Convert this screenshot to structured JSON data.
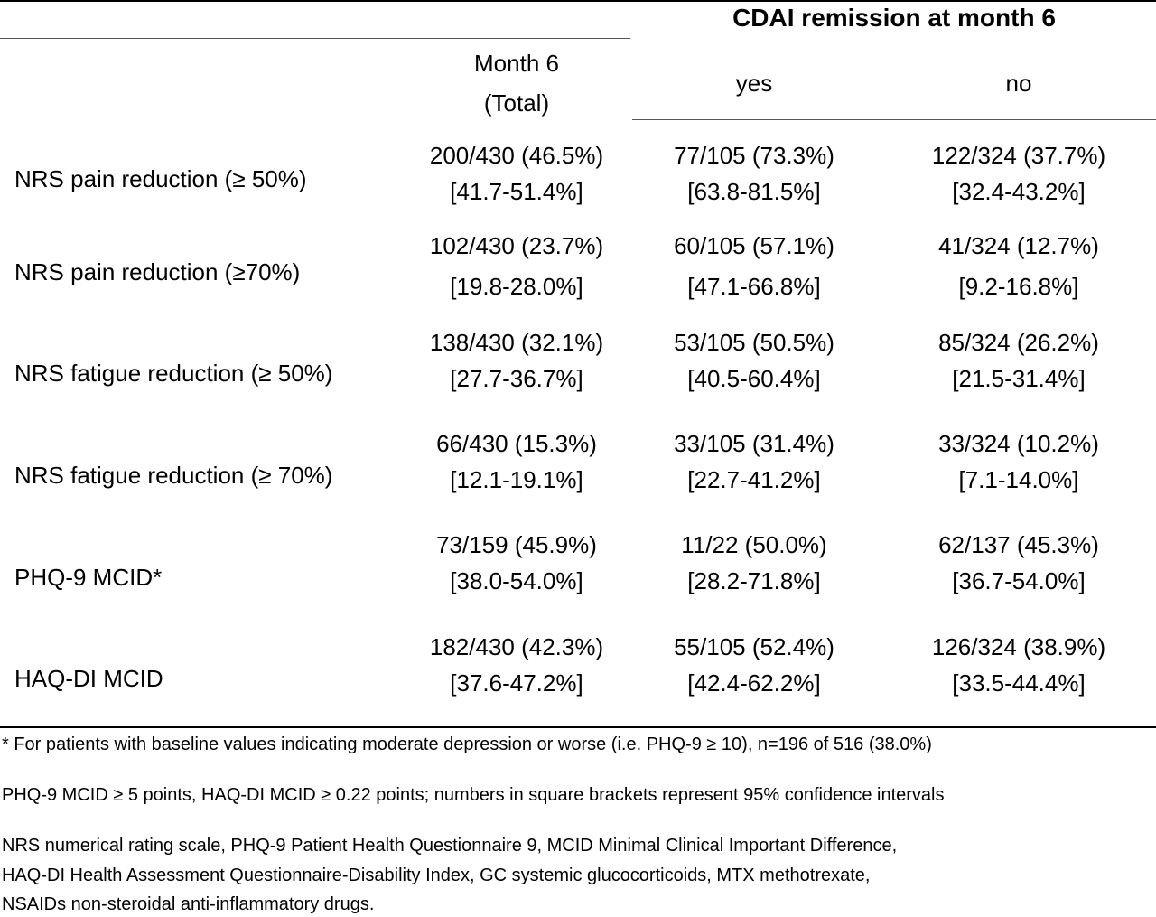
{
  "header": {
    "group_title": "CDAI remission at month 6",
    "col_total_line1": "Month 6",
    "col_total_line2": "(Total)",
    "col_yes": "yes",
    "col_no": "no"
  },
  "rows": [
    {
      "label": "NRS pain reduction (≥ 50%)",
      "total": [
        "200/430 (46.5%)",
        "[41.7-51.4%]"
      ],
      "yes": [
        "77/105 (73.3%)",
        "[63.8-81.5%]"
      ],
      "no": [
        "122/324 (37.7%)",
        "[32.4-43.2%]"
      ]
    },
    {
      "label": "NRS pain reduction (≥70%)",
      "total": [
        "102/430 (23.7%)",
        "[19.8-28.0%]"
      ],
      "yes": [
        "60/105 (57.1%)",
        "[47.1-66.8%]"
      ],
      "no": [
        "41/324 (12.7%)",
        "[9.2-16.8%]"
      ]
    },
    {
      "label": "NRS fatigue reduction (≥ 50%)",
      "total": [
        "138/430 (32.1%)",
        "[27.7-36.7%]"
      ],
      "yes": [
        "53/105 (50.5%)",
        "[40.5-60.4%]"
      ],
      "no": [
        "85/324 (26.2%)",
        "[21.5-31.4%]"
      ]
    },
    {
      "label": "NRS fatigue reduction (≥ 70%)",
      "total": [
        "66/430 (15.3%)",
        "[12.1-19.1%]"
      ],
      "yes": [
        "33/105 (31.4%)",
        "[22.7-41.2%]"
      ],
      "no": [
        "33/324 (10.2%)",
        "[7.1-14.0%]"
      ]
    },
    {
      "label": "PHQ-9 MCID*",
      "total": [
        "73/159 (45.9%)",
        "[38.0-54.0%]"
      ],
      "yes": [
        "11/22 (50.0%)",
        "[28.2-71.8%]"
      ],
      "no": [
        "62/137 (45.3%)",
        "[36.7-54.0%]"
      ]
    },
    {
      "label": "HAQ-DI MCID",
      "total": [
        "182/430 (42.3%)",
        "[37.6-47.2%]"
      ],
      "yes": [
        "55/105 (52.4%)",
        "[42.4-62.2%]"
      ],
      "no": [
        "126/324 (38.9%)",
        "[33.5-44.4%]"
      ]
    }
  ],
  "footnotes": {
    "note1": "* For patients with baseline values indicating moderate depression or worse (i.e. PHQ-9 ≥ 10), n=196 of 516 (38.0%)",
    "note2": "PHQ-9 MCID ≥ 5 points, HAQ-DI MCID ≥ 0.22 points; numbers in square brackets represent 95% confidence intervals",
    "note3_line1": "NRS numerical rating scale, PHQ-9 Patient Health Questionnaire 9, MCID Minimal Clinical Important Difference,",
    "note3_line2": "HAQ-DI Health Assessment Questionnaire-Disability Index, GC systemic glucocorticoids, MTX methotrexate,",
    "note3_line3": "NSAIDs non-steroidal anti-inflammatory drugs."
  }
}
